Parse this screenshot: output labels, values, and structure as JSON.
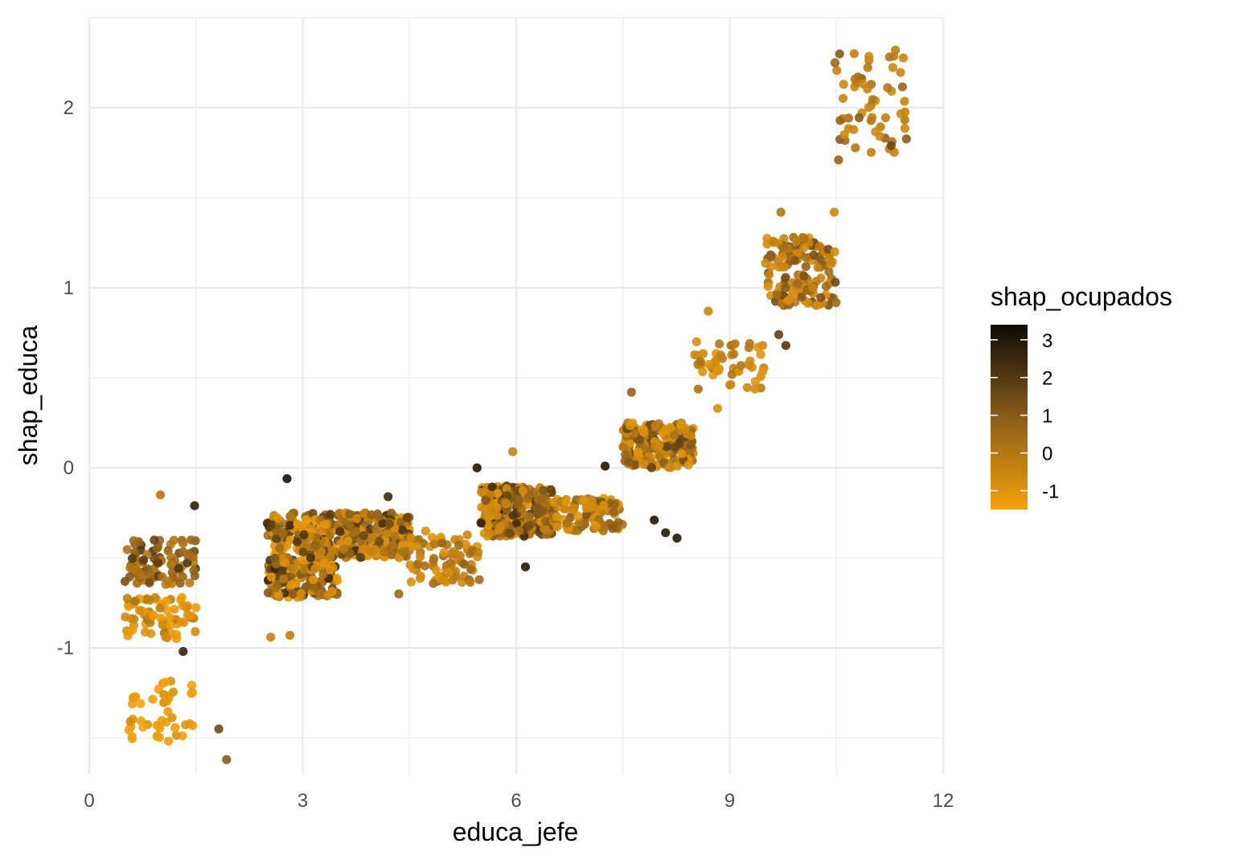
{
  "chart_data": {
    "type": "scatter",
    "xlabel": "educa_jefe",
    "ylabel": "shap_educa",
    "xlim": [
      0,
      12
    ],
    "ylim": [
      -1.7,
      2.5
    ],
    "x_ticks": [
      0,
      3,
      6,
      9,
      12
    ],
    "x_tick_labels": [
      "0",
      "3",
      "6",
      "9",
      "12"
    ],
    "y_ticks": [
      -1,
      0,
      1,
      2
    ],
    "y_tick_labels": [
      "-1",
      "0",
      "1",
      "2"
    ],
    "grid": true,
    "legend": {
      "title": "shap_ocupados",
      "placement": "right",
      "range": [
        -1.5,
        3.4
      ],
      "ticks": [
        3,
        2,
        1,
        0,
        -1
      ],
      "tick_labels": [
        "3",
        "2",
        "1",
        "0",
        "-1"
      ],
      "color_low": "#f5a20a",
      "color_mid": "#8a5c1a",
      "color_high": "#0d0a05"
    },
    "clusters": [
      {
        "x": [
          0.5,
          1.5
        ],
        "y": [
          -0.65,
          -0.4
        ],
        "n": 90,
        "c": [
          -0.2,
          2.2
        ]
      },
      {
        "x": [
          0.5,
          1.5
        ],
        "y": [
          -0.95,
          -0.72
        ],
        "n": 70,
        "c": [
          -1.3,
          0.2
        ]
      },
      {
        "x": [
          0.5,
          1.5
        ],
        "y": [
          -1.52,
          -1.18
        ],
        "n": 45,
        "c": [
          -1.5,
          -0.8
        ]
      },
      {
        "x": [
          2.5,
          3.5
        ],
        "y": [
          -0.72,
          -0.25
        ],
        "n": 330,
        "c": [
          -1.2,
          2.6
        ]
      },
      {
        "x": [
          3.5,
          4.5
        ],
        "y": [
          -0.5,
          -0.25
        ],
        "n": 230,
        "c": [
          -1.0,
          2.3
        ]
      },
      {
        "x": [
          4.5,
          5.5
        ],
        "y": [
          -0.65,
          -0.35
        ],
        "n": 80,
        "c": [
          -1.0,
          0.8
        ]
      },
      {
        "x": [
          5.5,
          6.5
        ],
        "y": [
          -0.38,
          -0.1
        ],
        "n": 260,
        "c": [
          -1.0,
          2.8
        ]
      },
      {
        "x": [
          6.5,
          7.5
        ],
        "y": [
          -0.35,
          -0.17
        ],
        "n": 110,
        "c": [
          -1.0,
          1.2
        ]
      },
      {
        "x": [
          7.5,
          8.5
        ],
        "y": [
          0.0,
          0.25
        ],
        "n": 190,
        "c": [
          -1.0,
          1.8
        ]
      },
      {
        "x": [
          8.5,
          9.5
        ],
        "y": [
          0.43,
          0.7
        ],
        "n": 50,
        "c": [
          -1.0,
          0.3
        ]
      },
      {
        "x": [
          9.5,
          10.5
        ],
        "y": [
          0.9,
          1.28
        ],
        "n": 150,
        "c": [
          -0.8,
          1.5
        ]
      },
      {
        "x": [
          10.5,
          11.5
        ],
        "y": [
          1.75,
          2.3
        ],
        "n": 55,
        "c": [
          -0.6,
          1.0
        ]
      }
    ],
    "points": [
      {
        "x": 2.78,
        "y": -0.06,
        "c": 3.2
      },
      {
        "x": 1.48,
        "y": -0.21,
        "c": 2.8
      },
      {
        "x": 1.0,
        "y": -0.15,
        "c": 0.0
      },
      {
        "x": 1.32,
        "y": -1.02,
        "c": 2.6
      },
      {
        "x": 1.82,
        "y": -1.45,
        "c": 1.5
      },
      {
        "x": 1.93,
        "y": -1.62,
        "c": 1.0
      },
      {
        "x": 2.55,
        "y": -0.94,
        "c": -0.4
      },
      {
        "x": 2.82,
        "y": -0.93,
        "c": -0.3
      },
      {
        "x": 4.35,
        "y": -0.7,
        "c": 0.5
      },
      {
        "x": 4.2,
        "y": -0.16,
        "c": 2.5
      },
      {
        "x": 5.45,
        "y": 0.0,
        "c": 3.0
      },
      {
        "x": 6.13,
        "y": -0.55,
        "c": 3.0
      },
      {
        "x": 5.95,
        "y": 0.09,
        "c": -0.4
      },
      {
        "x": 7.25,
        "y": 0.01,
        "c": 3.0
      },
      {
        "x": 7.62,
        "y": 0.42,
        "c": 0.8
      },
      {
        "x": 7.94,
        "y": -0.29,
        "c": 3.0
      },
      {
        "x": 8.1,
        "y": -0.36,
        "c": 3.0
      },
      {
        "x": 8.26,
        "y": -0.39,
        "c": 3.0
      },
      {
        "x": 8.7,
        "y": 0.87,
        "c": -0.5
      },
      {
        "x": 8.83,
        "y": 0.33,
        "c": -0.8
      },
      {
        "x": 9.69,
        "y": 0.74,
        "c": 1.8
      },
      {
        "x": 9.79,
        "y": 0.68,
        "c": 2.0
      },
      {
        "x": 9.72,
        "y": 1.42,
        "c": 0.0
      },
      {
        "x": 10.47,
        "y": 1.42,
        "c": -0.5
      },
      {
        "x": 10.53,
        "y": 1.71,
        "c": 0.8
      },
      {
        "x": 11.27,
        "y": 1.79,
        "c": 1.6
      },
      {
        "x": 10.75,
        "y": 2.3,
        "c": -0.3
      },
      {
        "x": 11.33,
        "y": 2.32,
        "c": -0.2
      },
      {
        "x": 10.48,
        "y": 2.25,
        "c": 0.5
      }
    ]
  }
}
